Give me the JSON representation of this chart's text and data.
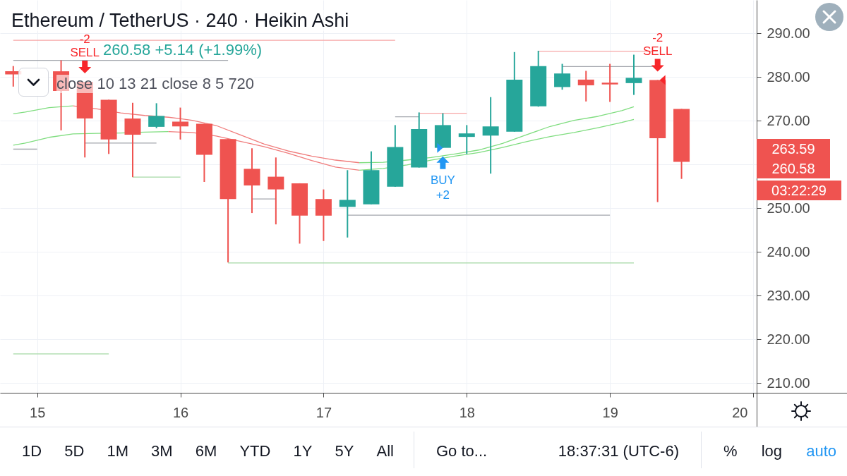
{
  "chart_data": {
    "type": "candlestick",
    "title": "Ethereum / TetherUS · 240 · Heikin Ashi",
    "subtitle": "260.58 +5.14 (+1.99%)",
    "x": [
      14.833,
      15.167,
      15.333,
      15.5,
      15.667,
      15.833,
      16,
      16.167,
      16.333,
      16.5,
      16.667,
      16.833,
      17,
      17.167,
      17.333,
      17.5,
      17.667,
      17.833,
      18,
      18.167,
      18.333,
      18.5,
      18.667,
      18.833,
      19,
      19.167,
      19.333,
      19.5
    ],
    "ohlc": [
      [
        281.3,
        282.5,
        277.8,
        280.6
      ],
      [
        281.3,
        283.8,
        267.8,
        276.8
      ],
      [
        278.9,
        278.9,
        261.6,
        270.5
      ],
      [
        274.8,
        274.8,
        262.4,
        265.7
      ],
      [
        270.5,
        274.1,
        257.1,
        266.8
      ],
      [
        268.6,
        274.0,
        268.3,
        271.1
      ],
      [
        269.8,
        273.0,
        265.7,
        268.7
      ],
      [
        269.3,
        269.3,
        256.0,
        262.2
      ],
      [
        265.8,
        265.8,
        237.6,
        252.1
      ],
      [
        259.0,
        263.7,
        248.9,
        255.2
      ],
      [
        257.2,
        261.6,
        246.3,
        254.3
      ],
      [
        255.7,
        255.7,
        241.9,
        248.3
      ],
      [
        252.1,
        254.3,
        242.5,
        248.3
      ],
      [
        250.3,
        258.7,
        243.3,
        251.9
      ],
      [
        250.9,
        263.0,
        250.9,
        258.7
      ],
      [
        254.9,
        269.0,
        254.9,
        264.0
      ],
      [
        259.3,
        271.9,
        259.3,
        268.1
      ],
      [
        263.8,
        271.7,
        263.8,
        269.0
      ],
      [
        266.3,
        269.0,
        262.4,
        267.1
      ],
      [
        266.6,
        275.4,
        257.9,
        268.7
      ],
      [
        267.5,
        285.7,
        267.5,
        279.4
      ],
      [
        273.3,
        286.0,
        273.2,
        282.5
      ],
      [
        277.7,
        283.0,
        277.1,
        280.8
      ],
      [
        279.4,
        281.4,
        274.4,
        278.1
      ],
      [
        278.7,
        283.0,
        274.3,
        278.3
      ],
      [
        278.6,
        285.1,
        275.9,
        279.8
      ],
      [
        279.3,
        279.3,
        251.4,
        266.0
      ],
      [
        272.7,
        272.7,
        256.7,
        260.6
      ]
    ],
    "colors": [
      "#ef5350",
      "#ef5350",
      "#ef5350",
      "#ef5350",
      "#ef5350",
      "#26a69a",
      "#ef5350",
      "#ef5350",
      "#ef5350",
      "#ef5350",
      "#ef5350",
      "#ef5350",
      "#ef5350",
      "#26a69a",
      "#26a69a",
      "#26a69a",
      "#26a69a",
      "#26a69a",
      "#26a69a",
      "#26a69a",
      "#26a69a",
      "#26a69a",
      "#26a69a",
      "#ef5350",
      "#ef5350",
      "#26a69a",
      "#ef5350",
      "#ef5350"
    ],
    "series": [
      {
        "type": "line",
        "color": "#7fdd7f",
        "x": [
          14.833,
          14.917,
          15.083,
          15.25
        ],
        "values": [
          271.6,
          272.0,
          273.0,
          273.4
        ]
      },
      {
        "type": "line",
        "color": "#f07c7c",
        "x": [
          15.25,
          15.417,
          15.583,
          15.75,
          15.917,
          16.083,
          16.25,
          16.417,
          16.583,
          16.75,
          16.917,
          17.083,
          17.25
        ],
        "values": [
          273.4,
          272.7,
          271.8,
          271.2,
          270.8,
          270.1,
          268.9,
          266.8,
          264.7,
          263.1,
          261.9,
          261.0,
          260.4
        ]
      },
      {
        "type": "line",
        "color": "#7fdd7f",
        "x": [
          17.25,
          17.417,
          17.583,
          17.75,
          17.917,
          18.083,
          18.25,
          18.417,
          18.583,
          18.75,
          18.917,
          19.083,
          19.167
        ],
        "values": [
          260.4,
          260.5,
          261.0,
          261.6,
          262.4,
          263.3,
          264.8,
          266.8,
          268.7,
          270.1,
          271.0,
          272.3,
          273.2
        ]
      },
      {
        "type": "line",
        "color": "#7fdd7f",
        "x": [
          14.833,
          14.917,
          15.083,
          15.25,
          15.417,
          15.583,
          15.75,
          15.917
        ],
        "values": [
          264.4,
          264.9,
          266.2,
          267.0,
          267.1,
          267.2,
          267.4,
          267.5
        ]
      },
      {
        "type": "line",
        "color": "#f07c7c",
        "x": [
          15.917,
          16.083,
          16.25,
          16.417,
          16.583,
          16.75,
          16.917,
          17.083,
          17.25
        ],
        "values": [
          267.5,
          267.3,
          266.5,
          265.3,
          264.1,
          262.6,
          260.9,
          259.4,
          258.7
        ]
      },
      {
        "type": "line",
        "color": "#7fdd7f",
        "x": [
          17.25,
          17.417,
          17.583,
          17.75,
          17.917,
          18.083,
          18.25,
          18.417,
          18.583,
          18.75,
          18.917,
          19.083,
          19.167
        ],
        "values": [
          258.7,
          259.1,
          259.9,
          261.0,
          261.9,
          262.7,
          263.9,
          265.2,
          266.4,
          267.3,
          268.4,
          269.6,
          270.3
        ]
      },
      {
        "type": "line",
        "color": "#f7a6a6",
        "x": [
          14.833,
          17.5
        ],
        "values": [
          288.4,
          288.4
        ]
      },
      {
        "type": "line",
        "color": "#a3a6ad",
        "x": [
          14.833,
          16.333
        ],
        "values": [
          283.8,
          283.8
        ]
      },
      {
        "type": "line",
        "color": "#a3a6ad",
        "x": [
          14.833,
          15
        ],
        "values": [
          263.5,
          263.5
        ]
      },
      {
        "type": "line",
        "color": "#a3a6ad",
        "x": [
          15.333,
          15.833
        ],
        "values": [
          264.9,
          264.9
        ]
      },
      {
        "type": "line",
        "color": "#a5d9a5",
        "x": [
          15.667,
          16
        ],
        "values": [
          257.1,
          257.1
        ]
      },
      {
        "type": "line",
        "color": "#a3a6ad",
        "x": [
          16.5,
          16.667
        ],
        "values": [
          252.1,
          252.1
        ]
      },
      {
        "type": "line",
        "color": "#a3a6ad",
        "x": [
          17.167,
          19
        ],
        "values": [
          248.4,
          248.4
        ]
      },
      {
        "type": "line",
        "color": "#a5d9a5",
        "x": [
          16.333,
          19.167
        ],
        "values": [
          237.5,
          237.5
        ]
      },
      {
        "type": "line",
        "color": "#a5d9a5",
        "x": [
          14.833,
          15.5
        ],
        "values": [
          216.7,
          216.7
        ]
      },
      {
        "type": "line",
        "color": "#a3a6ad",
        "x": [
          17.5,
          17.667
        ],
        "values": [
          270.9,
          270.9
        ]
      },
      {
        "type": "line",
        "color": "#f7a6a6",
        "x": [
          17.667,
          18
        ],
        "values": [
          271.7,
          271.7
        ]
      },
      {
        "type": "line",
        "color": "#f7a6a6",
        "x": [
          18.5,
          19.333
        ],
        "values": [
          285.9,
          285.9
        ]
      },
      {
        "type": "line",
        "color": "#a3a6ad",
        "x": [
          18.667,
          19.333
        ],
        "values": [
          282.4,
          282.4
        ]
      }
    ],
    "annotations": [
      {
        "text": "-2\nSELL",
        "x": 15.333,
        "y": 278.9
      },
      {
        "text": "BUY\n+2",
        "x": 17.833,
        "y": 263.8
      },
      {
        "text": "-2\nSELL",
        "x": 19.333,
        "y": 279.3
      },
      "263.59",
      "260.58",
      "03:22:29",
      "close 10 13 21 close 8 5 720",
      "1D",
      "5D",
      "1M",
      "3M",
      "6M",
      "YTD",
      "1Y",
      "5Y",
      "All",
      "Go to...",
      "18:37:31 (UTC-6)",
      "%",
      "log",
      "auto"
    ],
    "xlim": [
      14.765,
      20
    ],
    "xticks": [
      15,
      16,
      17,
      18,
      19,
      20
    ],
    "ylim": [
      207.8,
      297.6
    ],
    "yticks": [
      {
        "value": 210,
        "label": "210.00"
      },
      {
        "value": 220,
        "label": "220.00"
      },
      {
        "value": 230,
        "label": "230.00"
      },
      {
        "value": 240,
        "label": "240.00"
      },
      {
        "value": 250,
        "label": "250.00"
      },
      {
        "value": 260,
        "label": null
      },
      {
        "value": 270,
        "label": "270.00"
      },
      {
        "value": 280,
        "label": "280.00"
      },
      {
        "value": 290,
        "label": "290.00"
      }
    ],
    "grid": true
  }
}
